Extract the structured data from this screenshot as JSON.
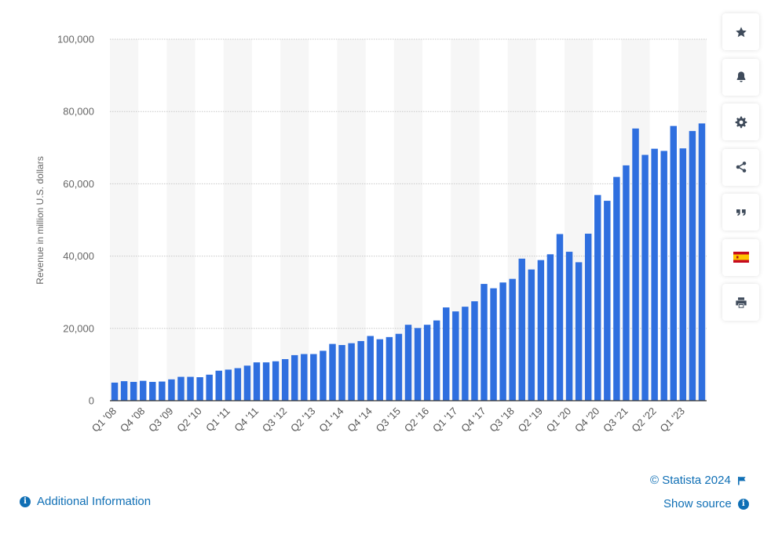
{
  "chart_data": {
    "type": "bar",
    "ylabel": "Revenue in million U.S. dollars",
    "xlabel": "",
    "ylim": [
      0,
      100000
    ],
    "yticks": [
      "0",
      "20,000",
      "40,000",
      "60,000",
      "80,000",
      "100,000"
    ],
    "grid": true,
    "bar_color": "#2f6fdf",
    "categories": [
      "Q1 '08",
      "Q2 '08",
      "Q3 '08",
      "Q4 '08",
      "Q1 '09",
      "Q2 '09",
      "Q3 '09",
      "Q4 '09",
      "Q1 '10",
      "Q2 '10",
      "Q3 '10",
      "Q4 '10",
      "Q1 '11",
      "Q2 '11",
      "Q3 '11",
      "Q4 '11",
      "Q1 '12",
      "Q2 '12",
      "Q3 '12",
      "Q4 '12",
      "Q1 '13",
      "Q2 '13",
      "Q3 '13",
      "Q4 '13",
      "Q1 '14",
      "Q2 '14",
      "Q3 '14",
      "Q4 '14",
      "Q1 '15",
      "Q2 '15",
      "Q3 '15",
      "Q4 '15",
      "Q1 '16",
      "Q2 '16",
      "Q3 '16",
      "Q4 '16",
      "Q1 '17",
      "Q2 '17",
      "Q3 '17",
      "Q4 '17",
      "Q1 '18",
      "Q2 '18",
      "Q3 '18",
      "Q4 '18",
      "Q1 '19",
      "Q2 '19",
      "Q3 '19",
      "Q4 '19",
      "Q1 '20",
      "Q2 '20",
      "Q3 '20",
      "Q4 '20",
      "Q1 '21",
      "Q2 '21",
      "Q3 '21",
      "Q4 '21",
      "Q1 '22",
      "Q2 '22",
      "Q3 '22",
      "Q4 '22",
      "Q1 '23",
      "Q2 '23",
      "Q3 '23"
    ],
    "xtick_labels": [
      "Q1 '08",
      "Q4 '08",
      "Q3 '09",
      "Q2 '10",
      "Q1 '11",
      "Q4 '11",
      "Q3 '12",
      "Q2 '13",
      "Q1 '14",
      "Q4 '14",
      "Q3 '15",
      "Q2 '16",
      "Q1 '17",
      "Q4 '17",
      "Q3 '18",
      "Q2 '19",
      "Q1 '20",
      "Q4 '20",
      "Q3 '21",
      "Q2 '22",
      "Q1 '23"
    ],
    "values": [
      5000,
      5400,
      5200,
      5500,
      5200,
      5300,
      5900,
      6600,
      6600,
      6500,
      7200,
      8300,
      8600,
      9000,
      9700,
      10600,
      10600,
      10900,
      11500,
      12600,
      12900,
      12900,
      13800,
      15700,
      15400,
      15900,
      16500,
      17900,
      17000,
      17600,
      18500,
      21000,
      20100,
      21000,
      22200,
      25800,
      24700,
      26000,
      27500,
      32300,
      31100,
      32700,
      33700,
      39300,
      36300,
      38900,
      40500,
      46100,
      41200,
      38300,
      46200,
      56900,
      55300,
      61900,
      65100,
      75300,
      68000,
      69700,
      69100,
      76000,
      69800,
      74600,
      76700
    ]
  },
  "toolbar": {
    "icons": [
      "star-icon",
      "bell-icon",
      "gear-icon",
      "share-icon",
      "quote-icon",
      "spain-flag-icon",
      "print-icon"
    ]
  },
  "footer": {
    "credit": "© Statista 2024",
    "show_source": "Show source",
    "additional_info": "Additional Information"
  },
  "colors": {
    "link": "#0f6fb5",
    "icon": "#3f4b5b",
    "bar": "#2f6fdf"
  }
}
